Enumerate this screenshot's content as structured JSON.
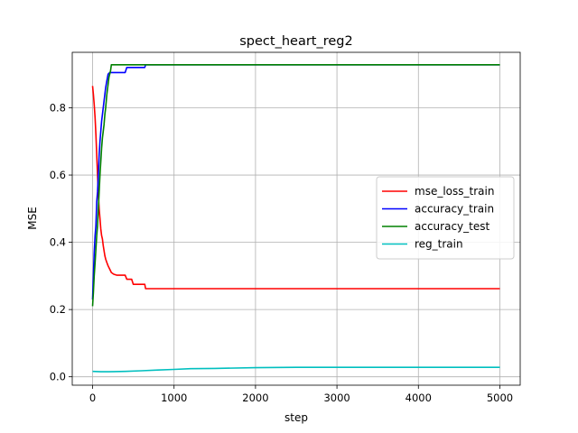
{
  "chart_data": {
    "type": "line",
    "title": "spect_heart_reg2",
    "xlabel": "step",
    "ylabel": "MSE",
    "xlim": [
      -250,
      5250
    ],
    "ylim": [
      -0.025,
      0.965
    ],
    "xticks": [
      0,
      1000,
      2000,
      3000,
      4000,
      5000
    ],
    "yticks": [
      0.0,
      0.2,
      0.4,
      0.6,
      0.8
    ],
    "xtick_labels": [
      "0",
      "1000",
      "2000",
      "3000",
      "4000",
      "5000"
    ],
    "ytick_labels": [
      "0.0",
      "0.2",
      "0.4",
      "0.6",
      "0.8"
    ],
    "grid": true,
    "legend_position": "center-right",
    "series": [
      {
        "name": "mse_loss_train",
        "color": "#ff0000",
        "x": [
          0,
          10,
          20,
          30,
          40,
          50,
          60,
          70,
          80,
          90,
          100,
          110,
          120,
          130,
          140,
          150,
          160,
          175,
          190,
          210,
          230,
          260,
          300,
          350,
          400,
          420,
          450,
          480,
          500,
          550,
          600,
          640,
          650,
          700,
          800,
          1000,
          2000,
          3000,
          4000,
          5000
        ],
        "y": [
          0.865,
          0.84,
          0.81,
          0.77,
          0.72,
          0.66,
          0.6,
          0.54,
          0.5,
          0.47,
          0.44,
          0.42,
          0.41,
          0.39,
          0.375,
          0.36,
          0.35,
          0.34,
          0.33,
          0.32,
          0.31,
          0.305,
          0.302,
          0.302,
          0.302,
          0.29,
          0.29,
          0.29,
          0.275,
          0.275,
          0.275,
          0.275,
          0.262,
          0.262,
          0.262,
          0.262,
          0.262,
          0.262,
          0.262,
          0.262
        ]
      },
      {
        "name": "accuracy_train",
        "color": "#0000ff",
        "x": [
          0,
          10,
          20,
          30,
          40,
          50,
          60,
          70,
          80,
          90,
          100,
          110,
          120,
          130,
          140,
          150,
          160,
          175,
          190,
          210,
          250,
          300,
          350,
          400,
          420,
          450,
          500,
          550,
          600,
          640,
          650,
          700,
          1000,
          2000,
          3000,
          4000,
          5000
        ],
        "y": [
          0.23,
          0.3,
          0.37,
          0.42,
          0.45,
          0.52,
          0.55,
          0.6,
          0.66,
          0.7,
          0.73,
          0.76,
          0.78,
          0.8,
          0.82,
          0.84,
          0.86,
          0.88,
          0.9,
          0.905,
          0.905,
          0.905,
          0.905,
          0.905,
          0.92,
          0.92,
          0.92,
          0.92,
          0.92,
          0.92,
          0.928,
          0.928,
          0.928,
          0.928,
          0.928,
          0.928,
          0.928
        ]
      },
      {
        "name": "accuracy_test",
        "color": "#008000",
        "x": [
          0,
          10,
          20,
          30,
          40,
          50,
          60,
          70,
          80,
          90,
          100,
          110,
          120,
          130,
          140,
          150,
          160,
          175,
          190,
          200,
          210,
          220,
          230,
          260,
          300,
          400,
          600,
          1000,
          2000,
          3000,
          4000,
          5000
        ],
        "y": [
          0.21,
          0.25,
          0.3,
          0.34,
          0.38,
          0.42,
          0.45,
          0.5,
          0.55,
          0.6,
          0.64,
          0.68,
          0.71,
          0.73,
          0.75,
          0.78,
          0.8,
          0.84,
          0.87,
          0.89,
          0.9,
          0.91,
          0.928,
          0.928,
          0.928,
          0.928,
          0.928,
          0.928,
          0.928,
          0.928,
          0.928,
          0.928
        ]
      },
      {
        "name": "reg_train",
        "color": "#00bfbf",
        "x": [
          0,
          100,
          200,
          400,
          600,
          800,
          1000,
          1200,
          1500,
          2000,
          2500,
          3000,
          3500,
          4000,
          4500,
          5000
        ],
        "y": [
          0.016,
          0.015,
          0.015,
          0.016,
          0.018,
          0.02,
          0.022,
          0.024,
          0.025,
          0.027,
          0.028,
          0.028,
          0.028,
          0.028,
          0.028,
          0.028
        ]
      }
    ]
  }
}
